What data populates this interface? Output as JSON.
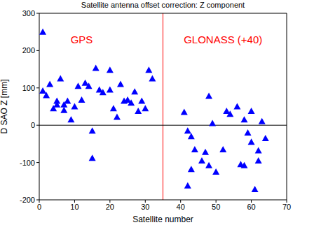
{
  "chart_data": {
    "type": "scatter",
    "title": "Satellite antenna offset correction: Z component",
    "x_label": "Satellite number",
    "y_label": "D SAO Z [mm]",
    "xlim": [
      0,
      70
    ],
    "xticks": [
      0,
      10,
      20,
      30,
      40,
      50,
      60,
      70
    ],
    "ylim": [
      -200,
      300
    ],
    "yticks": [
      -200,
      -100,
      0,
      100,
      200,
      300
    ],
    "grid": false,
    "reference_lines": [
      {
        "axis": "x",
        "value": 35,
        "color": "#ff0000"
      },
      {
        "axis": "y",
        "value": 0,
        "color": "#000000"
      }
    ],
    "series": [
      {
        "name": "GPS",
        "color": "#0000ff",
        "marker": "triangle",
        "label_color": "#ff0000",
        "label_x": 12,
        "label_y": 230,
        "x": [
          1,
          1,
          2,
          3,
          4,
          5,
          5,
          6,
          7,
          7,
          8,
          9,
          10,
          11,
          12,
          13,
          14,
          15,
          15,
          16,
          17,
          18,
          20,
          20,
          21,
          22,
          23,
          24,
          25,
          26,
          27,
          28,
          29,
          30,
          31,
          32
        ],
        "values": [
          250,
          92,
          80,
          110,
          45,
          65,
          55,
          125,
          40,
          55,
          65,
          15,
          50,
          105,
          68,
          113,
          105,
          -15,
          -88,
          153,
          95,
          88,
          148,
          95,
          45,
          22,
          110,
          65,
          68,
          60,
          90,
          38,
          65,
          45,
          148,
          125
        ]
      },
      {
        "name": "GLONASS (+40)",
        "color": "#0000ff",
        "marker": "triangle",
        "label_color": "#ff0000",
        "label_x": 52,
        "label_y": 230,
        "x": [
          41,
          42,
          42,
          43,
          43,
          44,
          46,
          47,
          48,
          48,
          49,
          50,
          52,
          53,
          54,
          56,
          57,
          58,
          58,
          59,
          60,
          60,
          61,
          62,
          62,
          63,
          64
        ],
        "values": [
          35,
          -162,
          -15,
          -30,
          -118,
          -65,
          -95,
          -72,
          78,
          -108,
          5,
          -125,
          -65,
          38,
          30,
          50,
          -105,
          -108,
          15,
          -20,
          38,
          -45,
          -172,
          -68,
          -95,
          10,
          -35
        ]
      }
    ]
  }
}
